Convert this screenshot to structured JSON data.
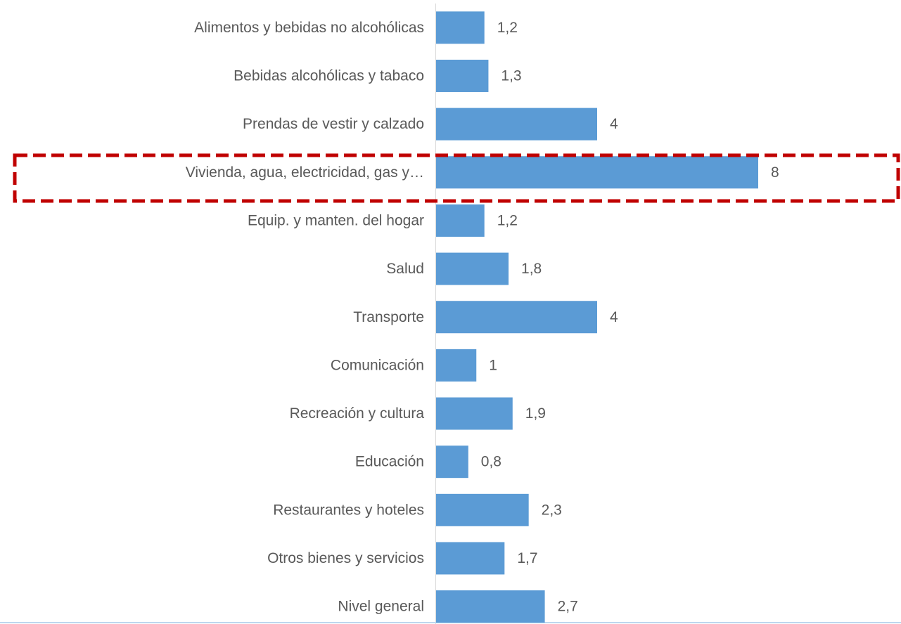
{
  "chart_data": {
    "type": "bar",
    "orientation": "horizontal",
    "color": "#5b9bd5",
    "categories": [
      "Alimentos y bebidas no alcohólicas",
      "Bebidas alcohólicas y tabaco",
      "Prendas de vestir y calzado",
      "Vivienda, agua, electricidad, gas y…",
      "Equip. y manten. del hogar",
      "Salud",
      "Transporte",
      "Comunicación",
      "Recreación y cultura",
      "Educación",
      "Restaurantes y hoteles",
      "Otros bienes y servicios",
      "Nivel general"
    ],
    "values": [
      1.2,
      1.3,
      4,
      8,
      1.2,
      1.8,
      4,
      1,
      1.9,
      0.8,
      2.3,
      1.7,
      2.7
    ],
    "value_labels": [
      "1,2",
      "1,3",
      "4",
      "8",
      "1,2",
      "1,8",
      "4",
      "1",
      "1,9",
      "0,8",
      "2,3",
      "1,7",
      "2,7"
    ]
  }
}
